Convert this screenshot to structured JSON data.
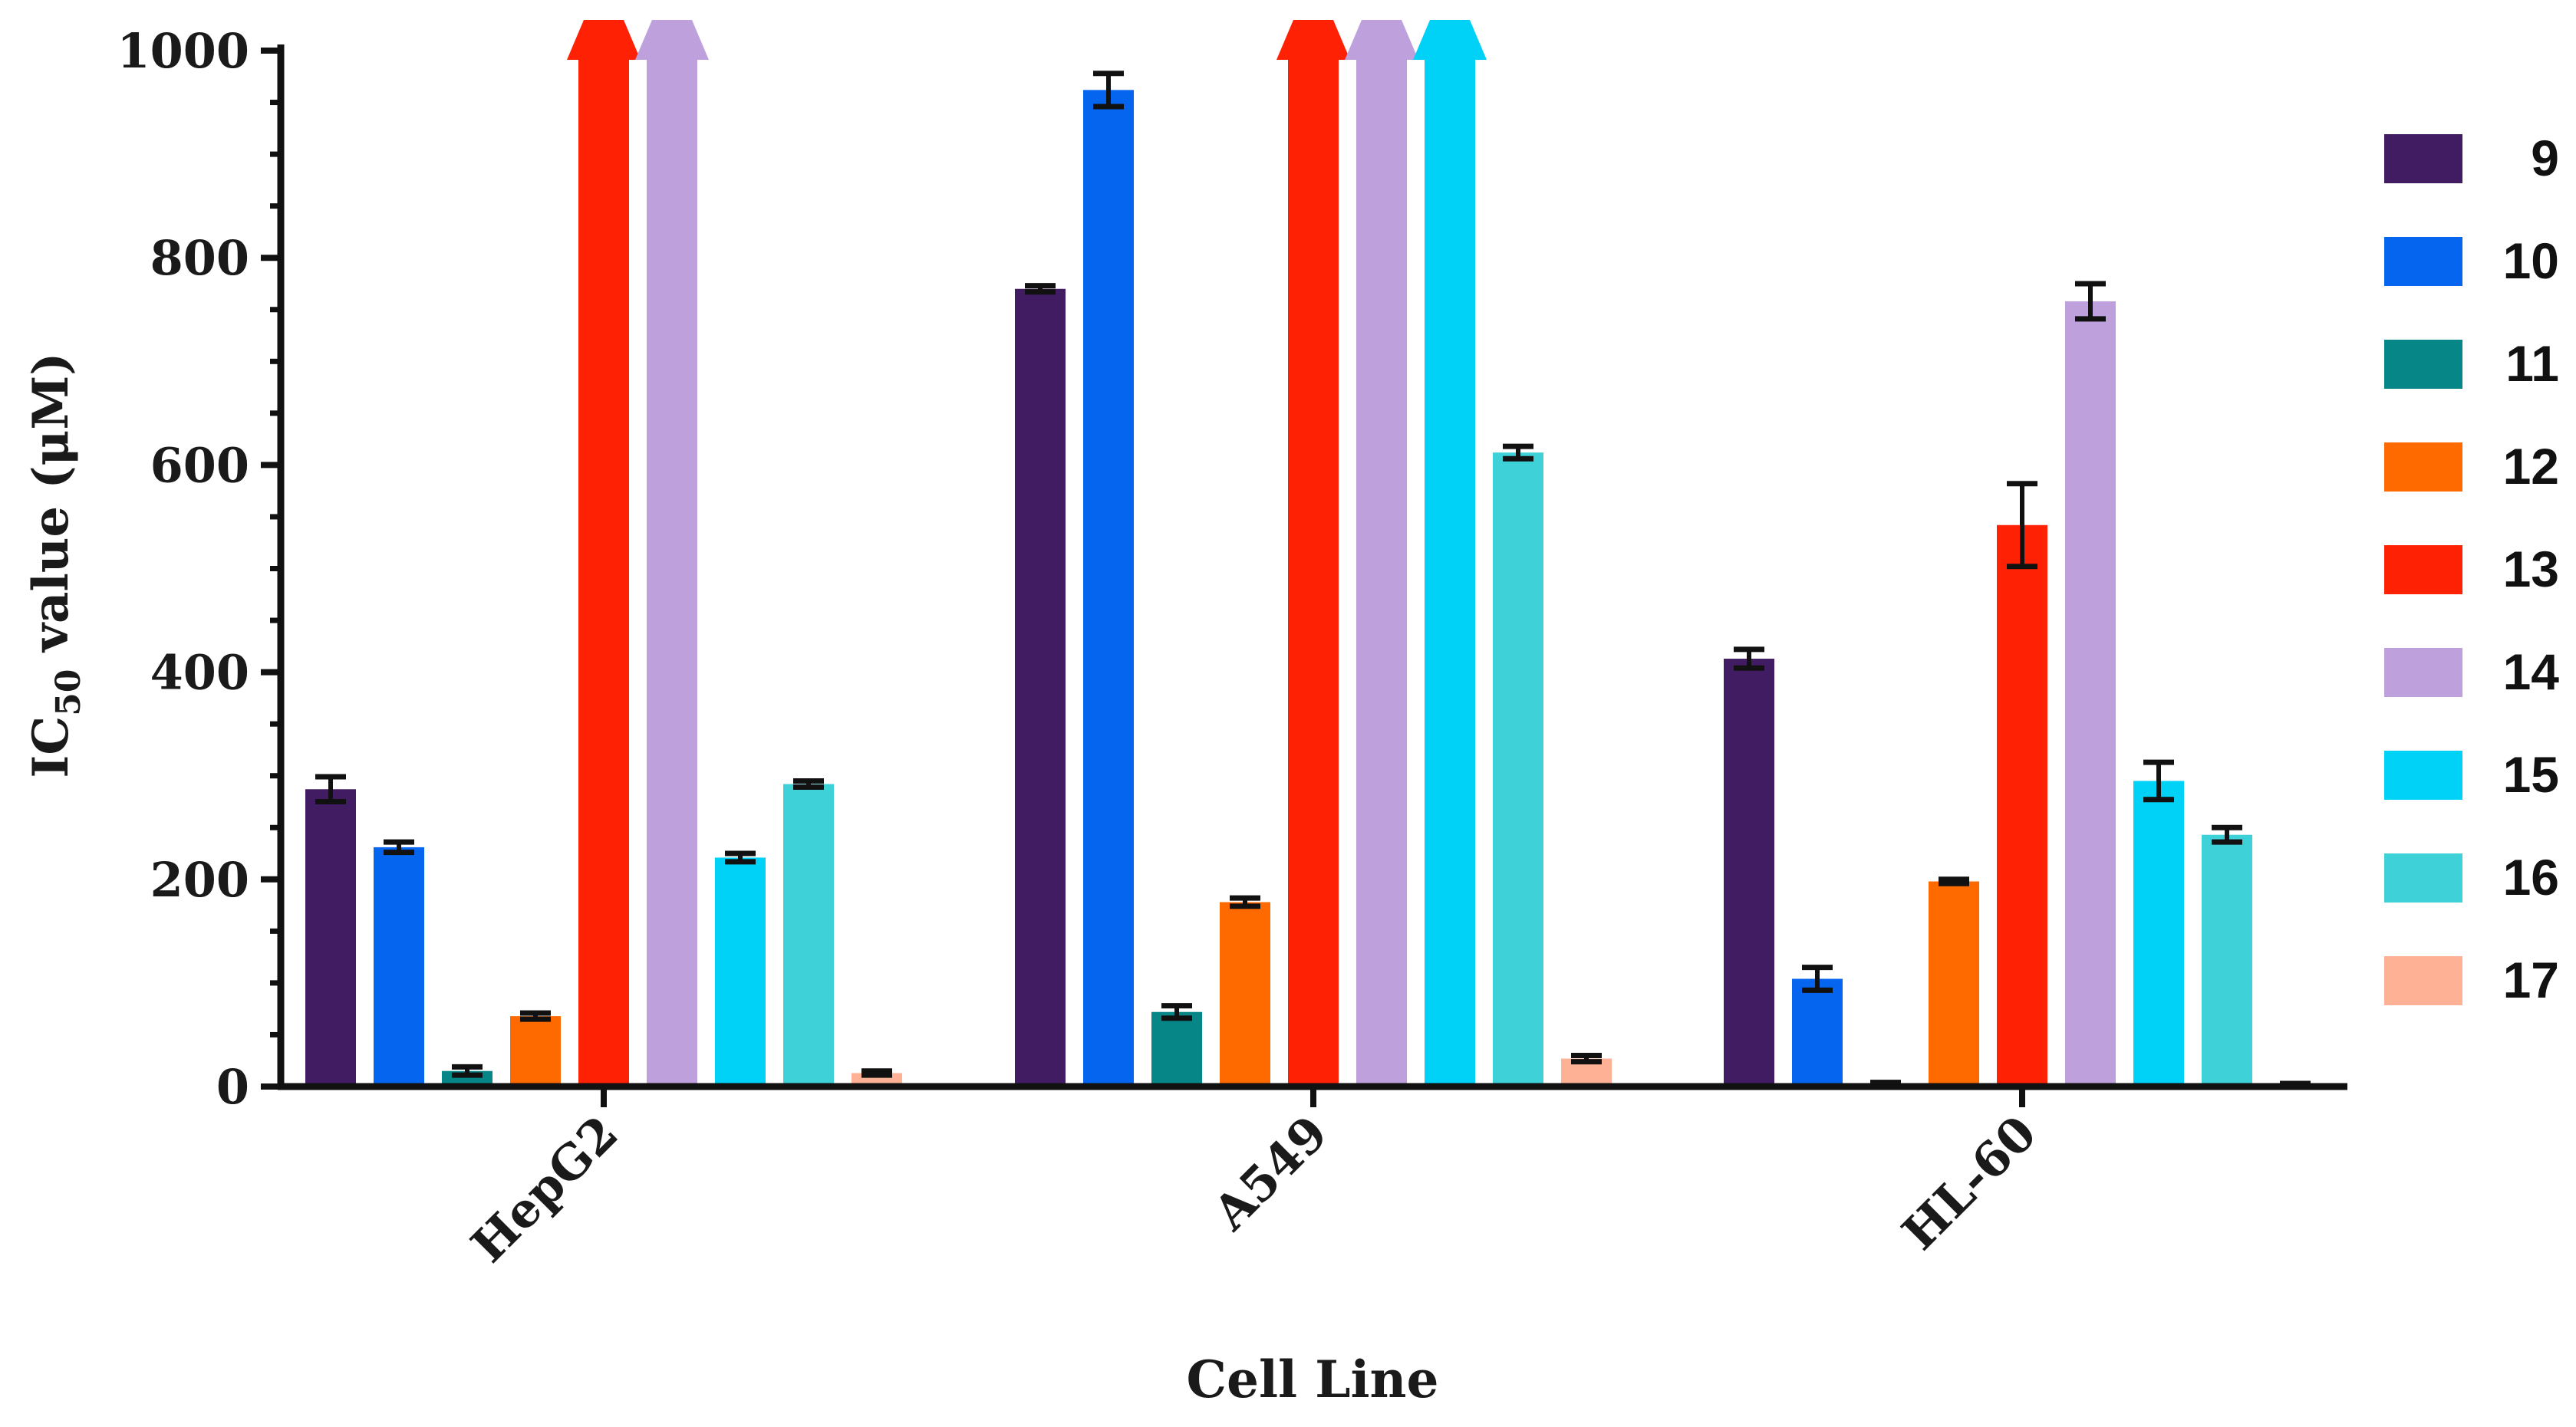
{
  "chart_data": {
    "type": "bar",
    "title": "",
    "xlabel": "Cell Line",
    "ylabel": {
      "main": "IC",
      "sub": "50",
      "rest": " value (μM)"
    },
    "ylim": [
      0,
      1000
    ],
    "y_ticks": [
      0,
      200,
      400,
      600,
      800,
      1000
    ],
    "y_tick_labels": [
      "0",
      "200",
      "400",
      "600",
      "800",
      "1000"
    ],
    "categories": [
      "HepG2",
      "A549",
      "HL-60"
    ],
    "legend_position": "right",
    "series": [
      {
        "name": "9",
        "color": "#421C63",
        "values": [
          287,
          770,
          413
        ],
        "errors": [
          12,
          3,
          9
        ],
        "exceeds": [
          false,
          false,
          false
        ]
      },
      {
        "name": "10",
        "color": "#0565EE",
        "values": [
          231,
          962,
          104
        ],
        "errors": [
          5,
          16,
          11
        ],
        "exceeds": [
          false,
          false,
          false
        ]
      },
      {
        "name": "11",
        "color": "#078688",
        "values": [
          15,
          72,
          3
        ],
        "errors": [
          4,
          6,
          1
        ],
        "exceeds": [
          false,
          false,
          false
        ]
      },
      {
        "name": "12",
        "color": "#FF6A00",
        "values": [
          68,
          178,
          198
        ],
        "errors": [
          3,
          4,
          2
        ],
        "exceeds": [
          false,
          false,
          false
        ]
      },
      {
        "name": "13",
        "color": "#FF2104",
        "values": [
          1000,
          1000,
          542
        ],
        "errors": [
          0,
          0,
          40
        ],
        "exceeds": [
          true,
          true,
          false
        ]
      },
      {
        "name": "14",
        "color": "#BDA0DC",
        "values": [
          1000,
          1000,
          758
        ],
        "errors": [
          0,
          0,
          17
        ],
        "exceeds": [
          true,
          true,
          false
        ]
      },
      {
        "name": "15",
        "color": "#00D2F7",
        "values": [
          221,
          1000,
          295
        ],
        "errors": [
          4,
          0,
          18
        ],
        "exceeds": [
          false,
          true,
          false
        ]
      },
      {
        "name": "16",
        "color": "#3FD1D8",
        "values": [
          292,
          612,
          243
        ],
        "errors": [
          3,
          6,
          7
        ],
        "exceeds": [
          false,
          false,
          false
        ]
      },
      {
        "name": "17",
        "color": "#FFB196",
        "values": [
          13,
          27,
          2
        ],
        "errors": [
          2,
          3,
          1
        ],
        "exceeds": [
          false,
          false,
          false
        ]
      }
    ]
  }
}
